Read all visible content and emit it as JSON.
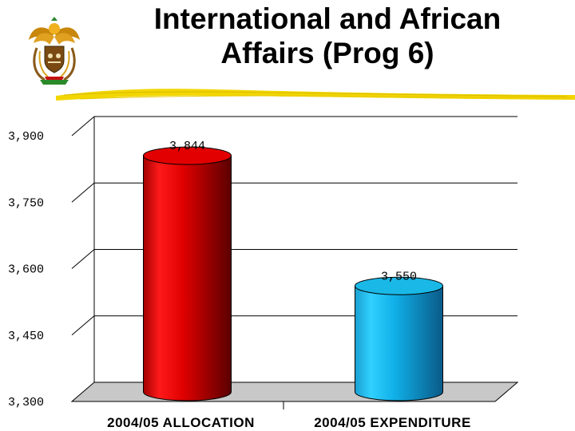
{
  "slide": {
    "title_line1": "International and African",
    "title_line2": "Affairs (Prog 6)"
  },
  "logo": {
    "icon": "coat-of-arms-icon"
  },
  "colors": {
    "underline": "#f2d600",
    "bar_allocation": "#e30000",
    "bar_expenditure": "#1ab8e6",
    "floor": "#c8c8c8"
  },
  "chart_data": {
    "type": "bar",
    "categories": [
      "2004/05 ALLOCATION",
      "2004/05 EXPENDITURE"
    ],
    "values": [
      3844,
      3550
    ],
    "value_labels": [
      "3,844",
      "3,550"
    ],
    "ylim": [
      3300,
      3900
    ],
    "yticks": [
      3300,
      3450,
      3600,
      3750,
      3900
    ],
    "ytick_labels": [
      "3,300",
      "3,450",
      "3,600",
      "3,750",
      "3,900"
    ],
    "grid": true,
    "bar_shape": "cylinder-3d",
    "legend": "none"
  }
}
